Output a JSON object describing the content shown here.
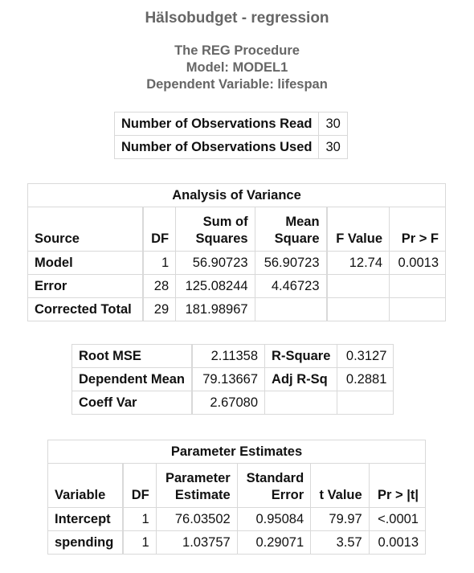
{
  "title": "Hälsobudget - regression",
  "procedure": {
    "line1": "The REG Procedure",
    "line2": "Model: MODEL1",
    "line3": "Dependent Variable: lifespan"
  },
  "observations": [
    {
      "label": "Number of Observations Read",
      "value": "30"
    },
    {
      "label": "Number of Observations Used",
      "value": "30"
    }
  ],
  "anova": {
    "caption": "Analysis of Variance",
    "headers": {
      "source": "Source",
      "df": "DF",
      "ss_1": "Sum of",
      "ss_2": "Squares",
      "ms_1": "Mean",
      "ms_2": "Square",
      "f": "F Value",
      "p": "Pr > F"
    },
    "rows": [
      {
        "source": "Model",
        "df": "1",
        "ss": "56.90723",
        "ms": "56.90723",
        "f": "12.74",
        "p": "0.0013"
      },
      {
        "source": "Error",
        "df": "28",
        "ss": "125.08244",
        "ms": "4.46723",
        "f": "",
        "p": ""
      },
      {
        "source": "Corrected Total",
        "df": "29",
        "ss": "181.98967",
        "ms": "",
        "f": "",
        "p": ""
      }
    ]
  },
  "fit": [
    {
      "label1": "Root MSE",
      "value1": "2.11358",
      "label2": "R-Square",
      "value2": "0.3127"
    },
    {
      "label1": "Dependent Mean",
      "value1": "79.13667",
      "label2": "Adj R-Sq",
      "value2": "0.2881"
    },
    {
      "label1": "Coeff Var",
      "value1": "2.67080",
      "label2": "",
      "value2": ""
    }
  ],
  "params": {
    "caption": "Parameter Estimates",
    "headers": {
      "variable": "Variable",
      "df": "DF",
      "est_1": "Parameter",
      "est_2": "Estimate",
      "se_1": "Standard",
      "se_2": "Error",
      "t": "t Value",
      "p": "Pr > |t|"
    },
    "rows": [
      {
        "variable": "Intercept",
        "df": "1",
        "est": "76.03502",
        "se": "0.95084",
        "t": "79.97",
        "p": "<.0001"
      },
      {
        "variable": "spending",
        "df": "1",
        "est": "1.03757",
        "se": "0.29071",
        "t": "3.57",
        "p": "0.0013"
      }
    ]
  }
}
